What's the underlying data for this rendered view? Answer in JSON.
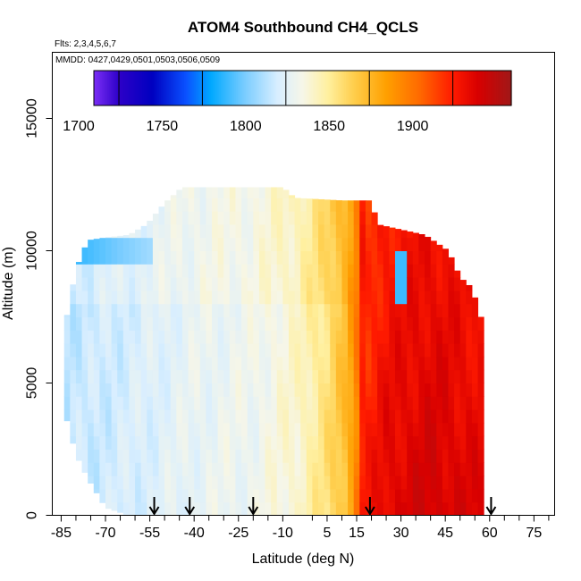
{
  "chart_data": {
    "type": "heatmap",
    "title": "ATOM4 Southbound CH4_QCLS",
    "subtitle_flights": "Flts: 2,3,4,5,6,7",
    "subtitle_dates": "MMDD: 0427,0429,0501,0503,0506,0509",
    "xlabel": "Latitude (deg N)",
    "ylabel": "Altitude (m)",
    "xlim": [
      -88,
      82
    ],
    "ylim": [
      0,
      17500
    ],
    "xticks": [
      -85,
      -70,
      -55,
      -40,
      -25,
      -10,
      5,
      15,
      30,
      45,
      60,
      75
    ],
    "xticks_minor": [
      -80,
      -75,
      -65,
      -60,
      -50,
      -45,
      -35,
      -30,
      -20,
      -15,
      0,
      10,
      20,
      25,
      35,
      40,
      50,
      55,
      65,
      70,
      80
    ],
    "yticks": [
      0,
      5000,
      10000,
      15000
    ],
    "colorbar": {
      "min": 1685,
      "max": 1935,
      "ticks": [
        1700,
        1750,
        1800,
        1850,
        1900
      ],
      "stops": [
        {
          "v": 1685,
          "color": "#7b2ff5"
        },
        {
          "v": 1700,
          "color": "#2d00c8"
        },
        {
          "v": 1720,
          "color": "#0000c0"
        },
        {
          "v": 1740,
          "color": "#0a50ff"
        },
        {
          "v": 1755,
          "color": "#00a8ff"
        },
        {
          "v": 1775,
          "color": "#78ccff"
        },
        {
          "v": 1795,
          "color": "#d8eeff"
        },
        {
          "v": 1810,
          "color": "#f6f6e8"
        },
        {
          "v": 1825,
          "color": "#fff0a0"
        },
        {
          "v": 1840,
          "color": "#ffd050"
        },
        {
          "v": 1860,
          "color": "#ffa000"
        },
        {
          "v": 1880,
          "color": "#ff6a00"
        },
        {
          "v": 1900,
          "color": "#ff1a00"
        },
        {
          "v": 1915,
          "color": "#d80000"
        },
        {
          "v": 1935,
          "color": "#a01818"
        }
      ]
    },
    "curtain": {
      "lat_step": 2,
      "alt_step": 500,
      "top_altitude_by_latitude": [
        {
          "lat": -84,
          "top": 7000
        },
        {
          "lat": -80,
          "top": 9300
        },
        {
          "lat": -76,
          "top": 10400
        },
        {
          "lat": -70,
          "top": 10500
        },
        {
          "lat": -62,
          "top": 10600
        },
        {
          "lat": -56,
          "top": 11000
        },
        {
          "lat": -50,
          "top": 11800
        },
        {
          "lat": -44,
          "top": 12400
        },
        {
          "lat": -10,
          "top": 12400
        },
        {
          "lat": -6,
          "top": 12000
        },
        {
          "lat": 10,
          "top": 11900
        },
        {
          "lat": 20,
          "top": 11900
        },
        {
          "lat": 22,
          "top": 11000
        },
        {
          "lat": 38,
          "top": 10600
        },
        {
          "lat": 46,
          "top": 10000
        },
        {
          "lat": 50,
          "top": 9000
        },
        {
          "lat": 54,
          "top": 8600
        },
        {
          "lat": 57,
          "top": 7500
        },
        {
          "lat": 58,
          "top": 6000
        }
      ],
      "bottom_altitude_by_latitude": [
        {
          "lat": -84,
          "top": 4000
        },
        {
          "lat": -80,
          "top": 2300
        },
        {
          "lat": -76,
          "top": 1400
        },
        {
          "lat": -70,
          "top": 300
        },
        {
          "lat": -62,
          "top": 0
        },
        {
          "lat": 58,
          "top": 0
        }
      ],
      "ch4_profile_by_latitude": [
        {
          "lat": -84,
          "ppb": 1790
        },
        {
          "lat": -60,
          "ppb": 1796
        },
        {
          "lat": -40,
          "ppb": 1803
        },
        {
          "lat": -20,
          "ppb": 1806
        },
        {
          "lat": -5,
          "ppb": 1816
        },
        {
          "lat": 5,
          "ppb": 1832
        },
        {
          "lat": 12,
          "ppb": 1850
        },
        {
          "lat": 15,
          "ppb": 1872
        },
        {
          "lat": 17,
          "ppb": 1900
        },
        {
          "lat": 25,
          "ppb": 1912
        },
        {
          "lat": 40,
          "ppb": 1918
        },
        {
          "lat": 58,
          "ppb": 1912
        }
      ],
      "upper_troposphere_low_ch4_band": {
        "lat_min": -84,
        "lat_max": -55,
        "alt_min": 9300,
        "alt_max": 10400,
        "ppb": 1760
      },
      "upper_troposphere_low_ch4_pocket": {
        "lat": 30,
        "alt_min": 8200,
        "alt_max": 10000,
        "ppb": 1765
      }
    },
    "flight_latitude_markers": [
      -53.5,
      -41.5,
      -20,
      19.5,
      60.5
    ]
  }
}
